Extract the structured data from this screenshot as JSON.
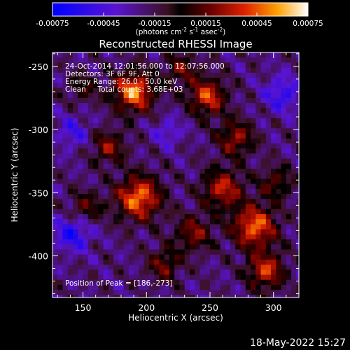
{
  "colorbar": {
    "ticks": [
      "-0.00075",
      "-0.00045",
      "-0.00015",
      "0.00015",
      "0.00045",
      "0.00075"
    ],
    "tick_values": [
      -0.00075,
      -0.00045,
      -0.00015,
      0.00015,
      0.00045,
      0.00075
    ],
    "range": [
      -0.00075,
      0.00075
    ],
    "units_main": "(photons cm",
    "units_sup1": "-2",
    "units_mid": " s",
    "units_sup2": "-1",
    "units_mid2": " asec",
    "units_sup3": "-2",
    "units_end": ")"
  },
  "chart_data": {
    "type": "heatmap",
    "title": "Reconstructed RHESSI Image",
    "xlabel": "Heliocentric X (arcsec)",
    "ylabel": "Heliocentric Y (arcsec)",
    "xlim": [
      126,
      320
    ],
    "ylim": [
      -433,
      -239
    ],
    "xticks": [
      150,
      200,
      250,
      300
    ],
    "yticks": [
      -250,
      -300,
      -350,
      -400
    ],
    "annotations": [
      "24-Oct-2014 12:01:56.000 to 12:07:56.000",
      "Detectors: 3F 6F 9F, Att 0",
      "Energy Range: 26.0 - 50.0 keV",
      "Clean     Total counts: 3.68E+03"
    ],
    "peak_text": "Position of Peak = [186,-273]",
    "peak": [
      186,
      -273
    ],
    "blobs": [
      {
        "x": 188,
        "y": -268,
        "amp": 1.0,
        "w": 11
      },
      {
        "x": 192,
        "y": -352,
        "amp": 0.95,
        "w": 12
      },
      {
        "x": 246,
        "y": -272,
        "amp": 0.8,
        "w": 10
      },
      {
        "x": 258,
        "y": -345,
        "amp": 0.7,
        "w": 11
      },
      {
        "x": 283,
        "y": -375,
        "amp": 0.9,
        "w": 12
      },
      {
        "x": 292,
        "y": -410,
        "amp": 0.75,
        "w": 10
      },
      {
        "x": 168,
        "y": -312,
        "amp": 0.55,
        "w": 9
      },
      {
        "x": 268,
        "y": -305,
        "amp": 0.6,
        "w": 10
      },
      {
        "x": 235,
        "y": -380,
        "amp": 0.55,
        "w": 10
      },
      {
        "x": 212,
        "y": -405,
        "amp": 0.5,
        "w": 9
      },
      {
        "x": 150,
        "y": -360,
        "amp": 0.45,
        "w": 9
      },
      {
        "x": 300,
        "y": -340,
        "amp": 0.45,
        "w": 9
      },
      {
        "x": 225,
        "y": -250,
        "amp": 0.45,
        "w": 9
      },
      {
        "x": 148,
        "y": -265,
        "amp": 0.35,
        "w": 8
      }
    ],
    "negative_regions": [
      {
        "x": 140,
        "y": -380,
        "amp": -0.55,
        "w": 10
      },
      {
        "x": 305,
        "y": -270,
        "amp": -0.45,
        "w": 10
      },
      {
        "x": 140,
        "y": -300,
        "amp": -0.35,
        "w": 9
      },
      {
        "x": 215,
        "y": -300,
        "amp": -0.3,
        "w": 8
      }
    ]
  },
  "timestamp": "18-May-2022 15:27"
}
